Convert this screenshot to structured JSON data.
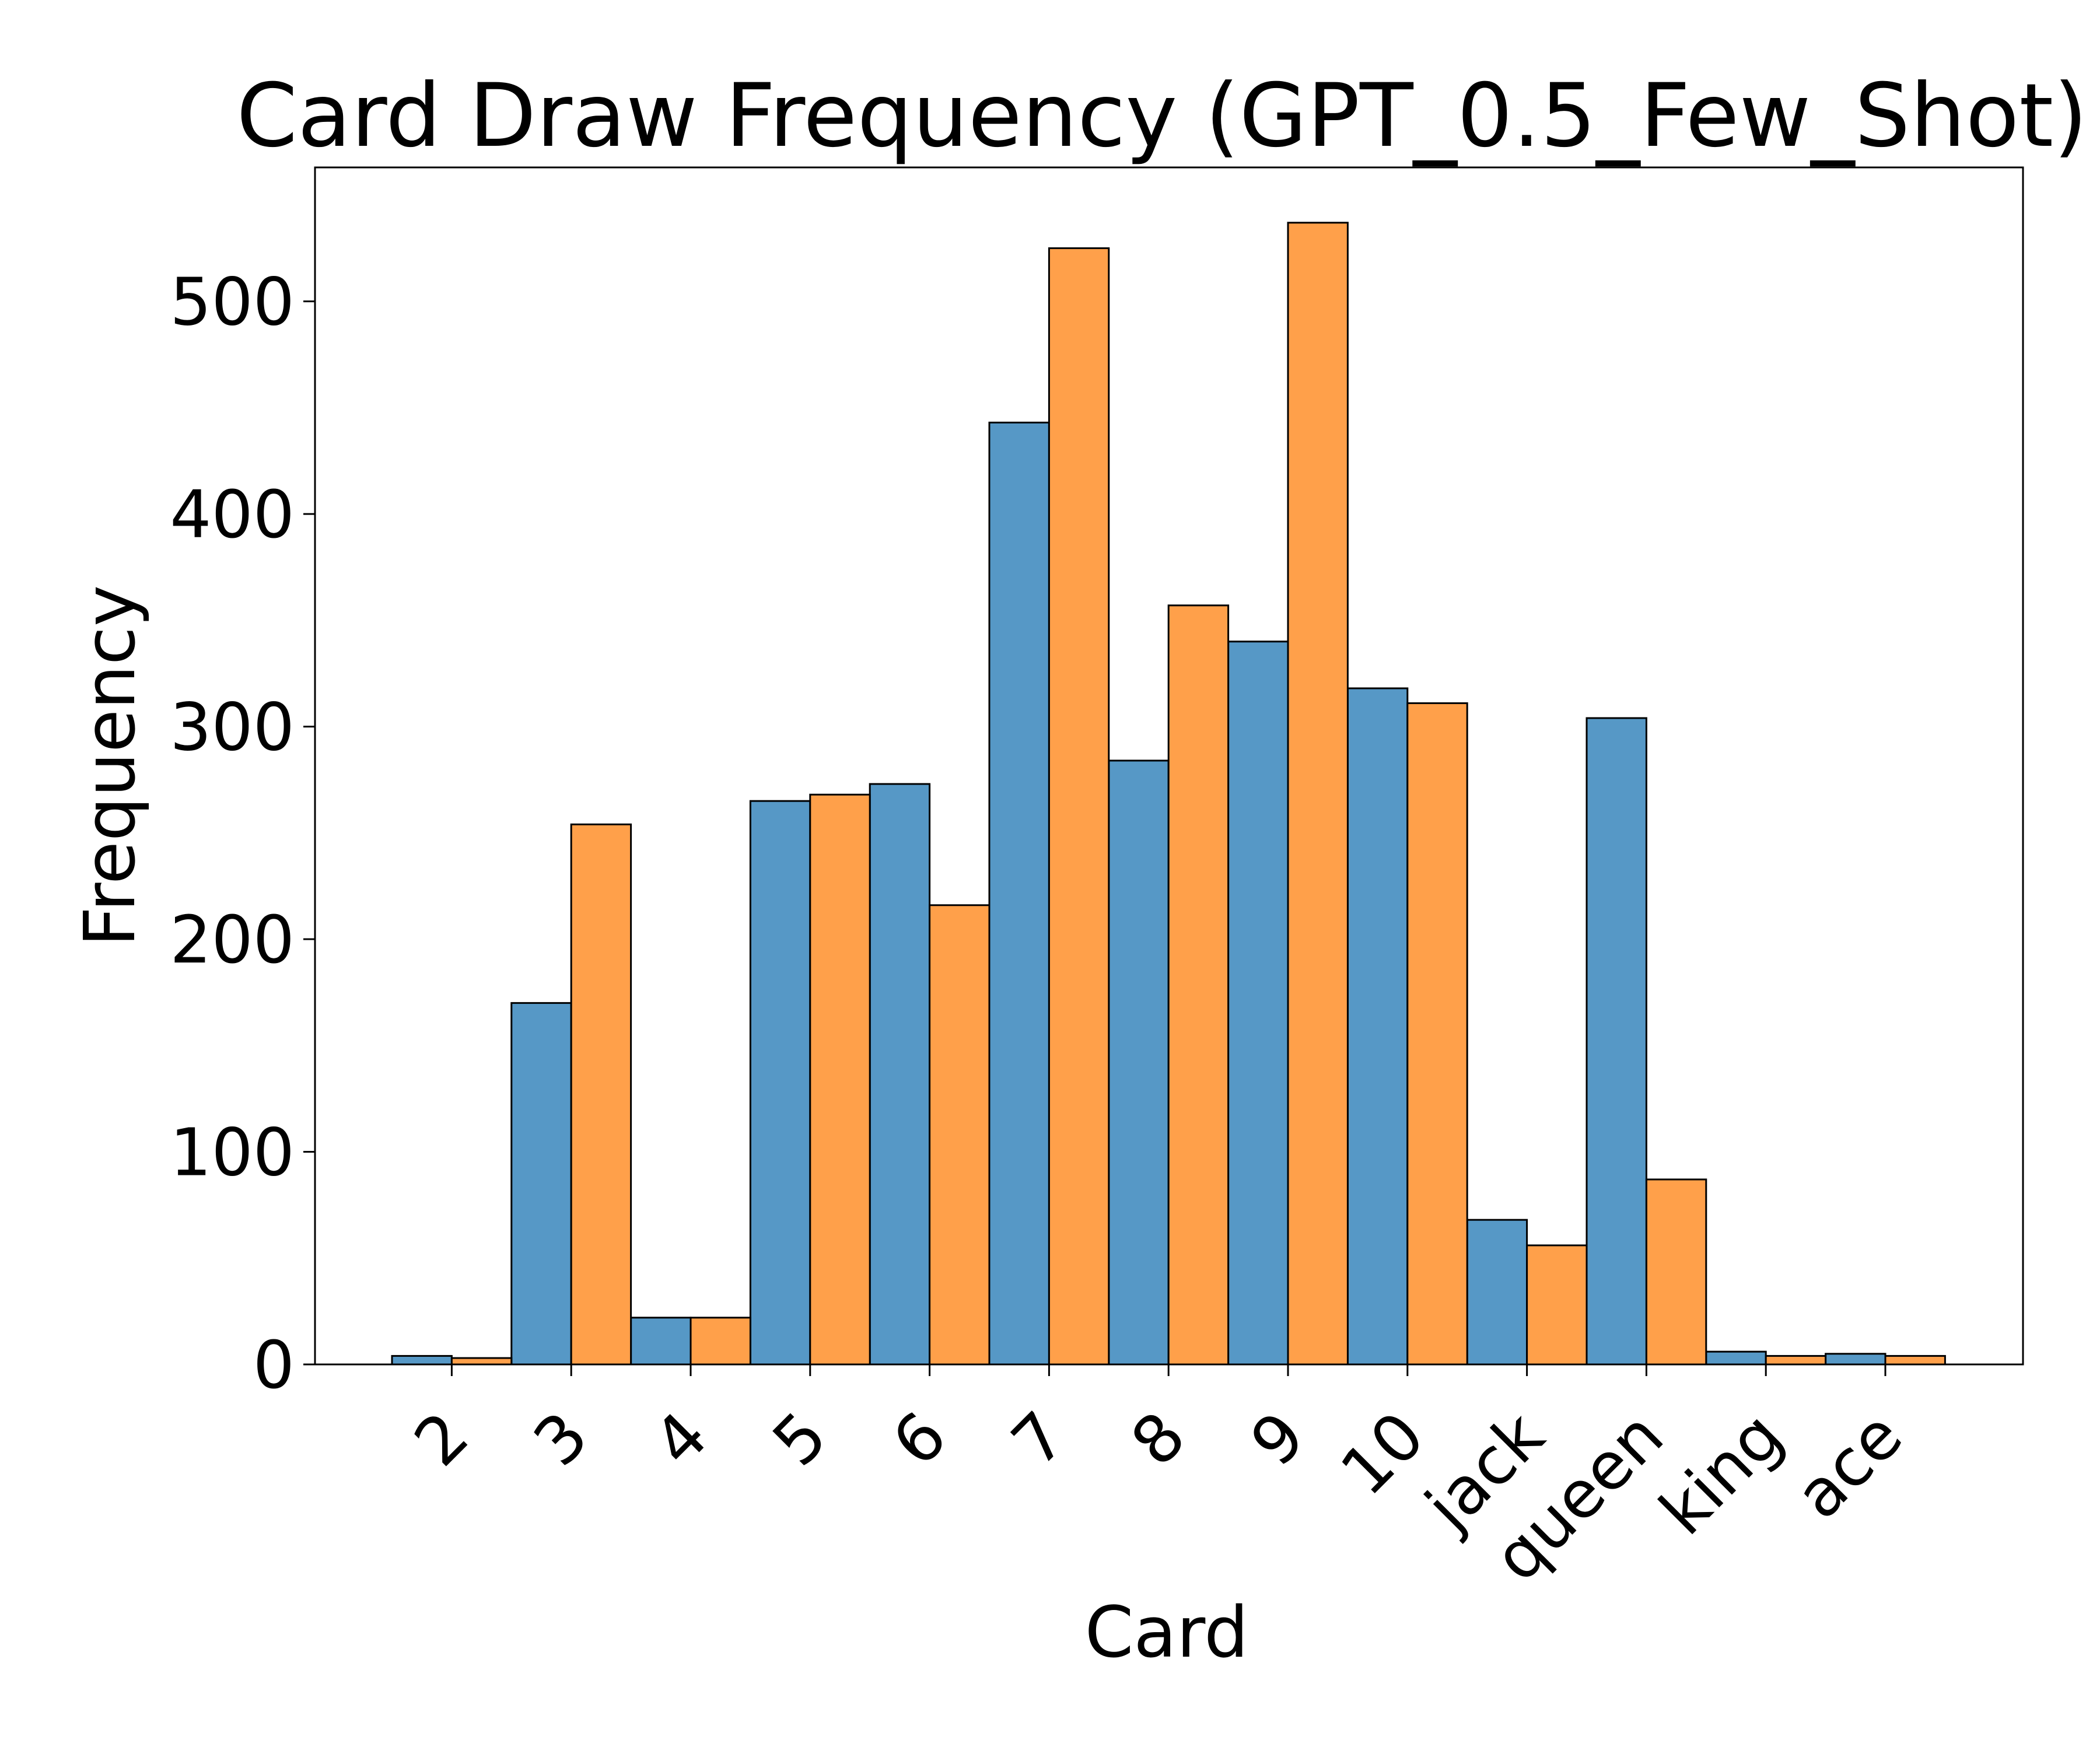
{
  "chart_data": {
    "type": "bar",
    "title": "Card Draw Frequency (GPT_0.5_Few_Shot)",
    "xlabel": "Card",
    "ylabel": "Frequency",
    "categories": [
      "2",
      "3",
      "4",
      "5",
      "6",
      "7",
      "8",
      "9",
      "10",
      "jack",
      "queen",
      "king",
      "ace"
    ],
    "series": [
      {
        "values": [
          4,
          170,
          22,
          265,
          273,
          443,
          284,
          340,
          318,
          68,
          304,
          6,
          5
        ]
      },
      {
        "values": [
          3,
          254,
          22,
          268,
          216,
          525,
          357,
          537,
          311,
          56,
          87,
          4,
          4
        ]
      }
    ],
    "ylim": [
      0,
      563
    ],
    "yticks": [
      0,
      100,
      200,
      300,
      400,
      500
    ],
    "xtick_rotation": -45,
    "grid": false,
    "legend": "none",
    "colors": {
      "series": [
        "#5698c6",
        "#ffa04a"
      ],
      "edge": "#000000"
    }
  }
}
